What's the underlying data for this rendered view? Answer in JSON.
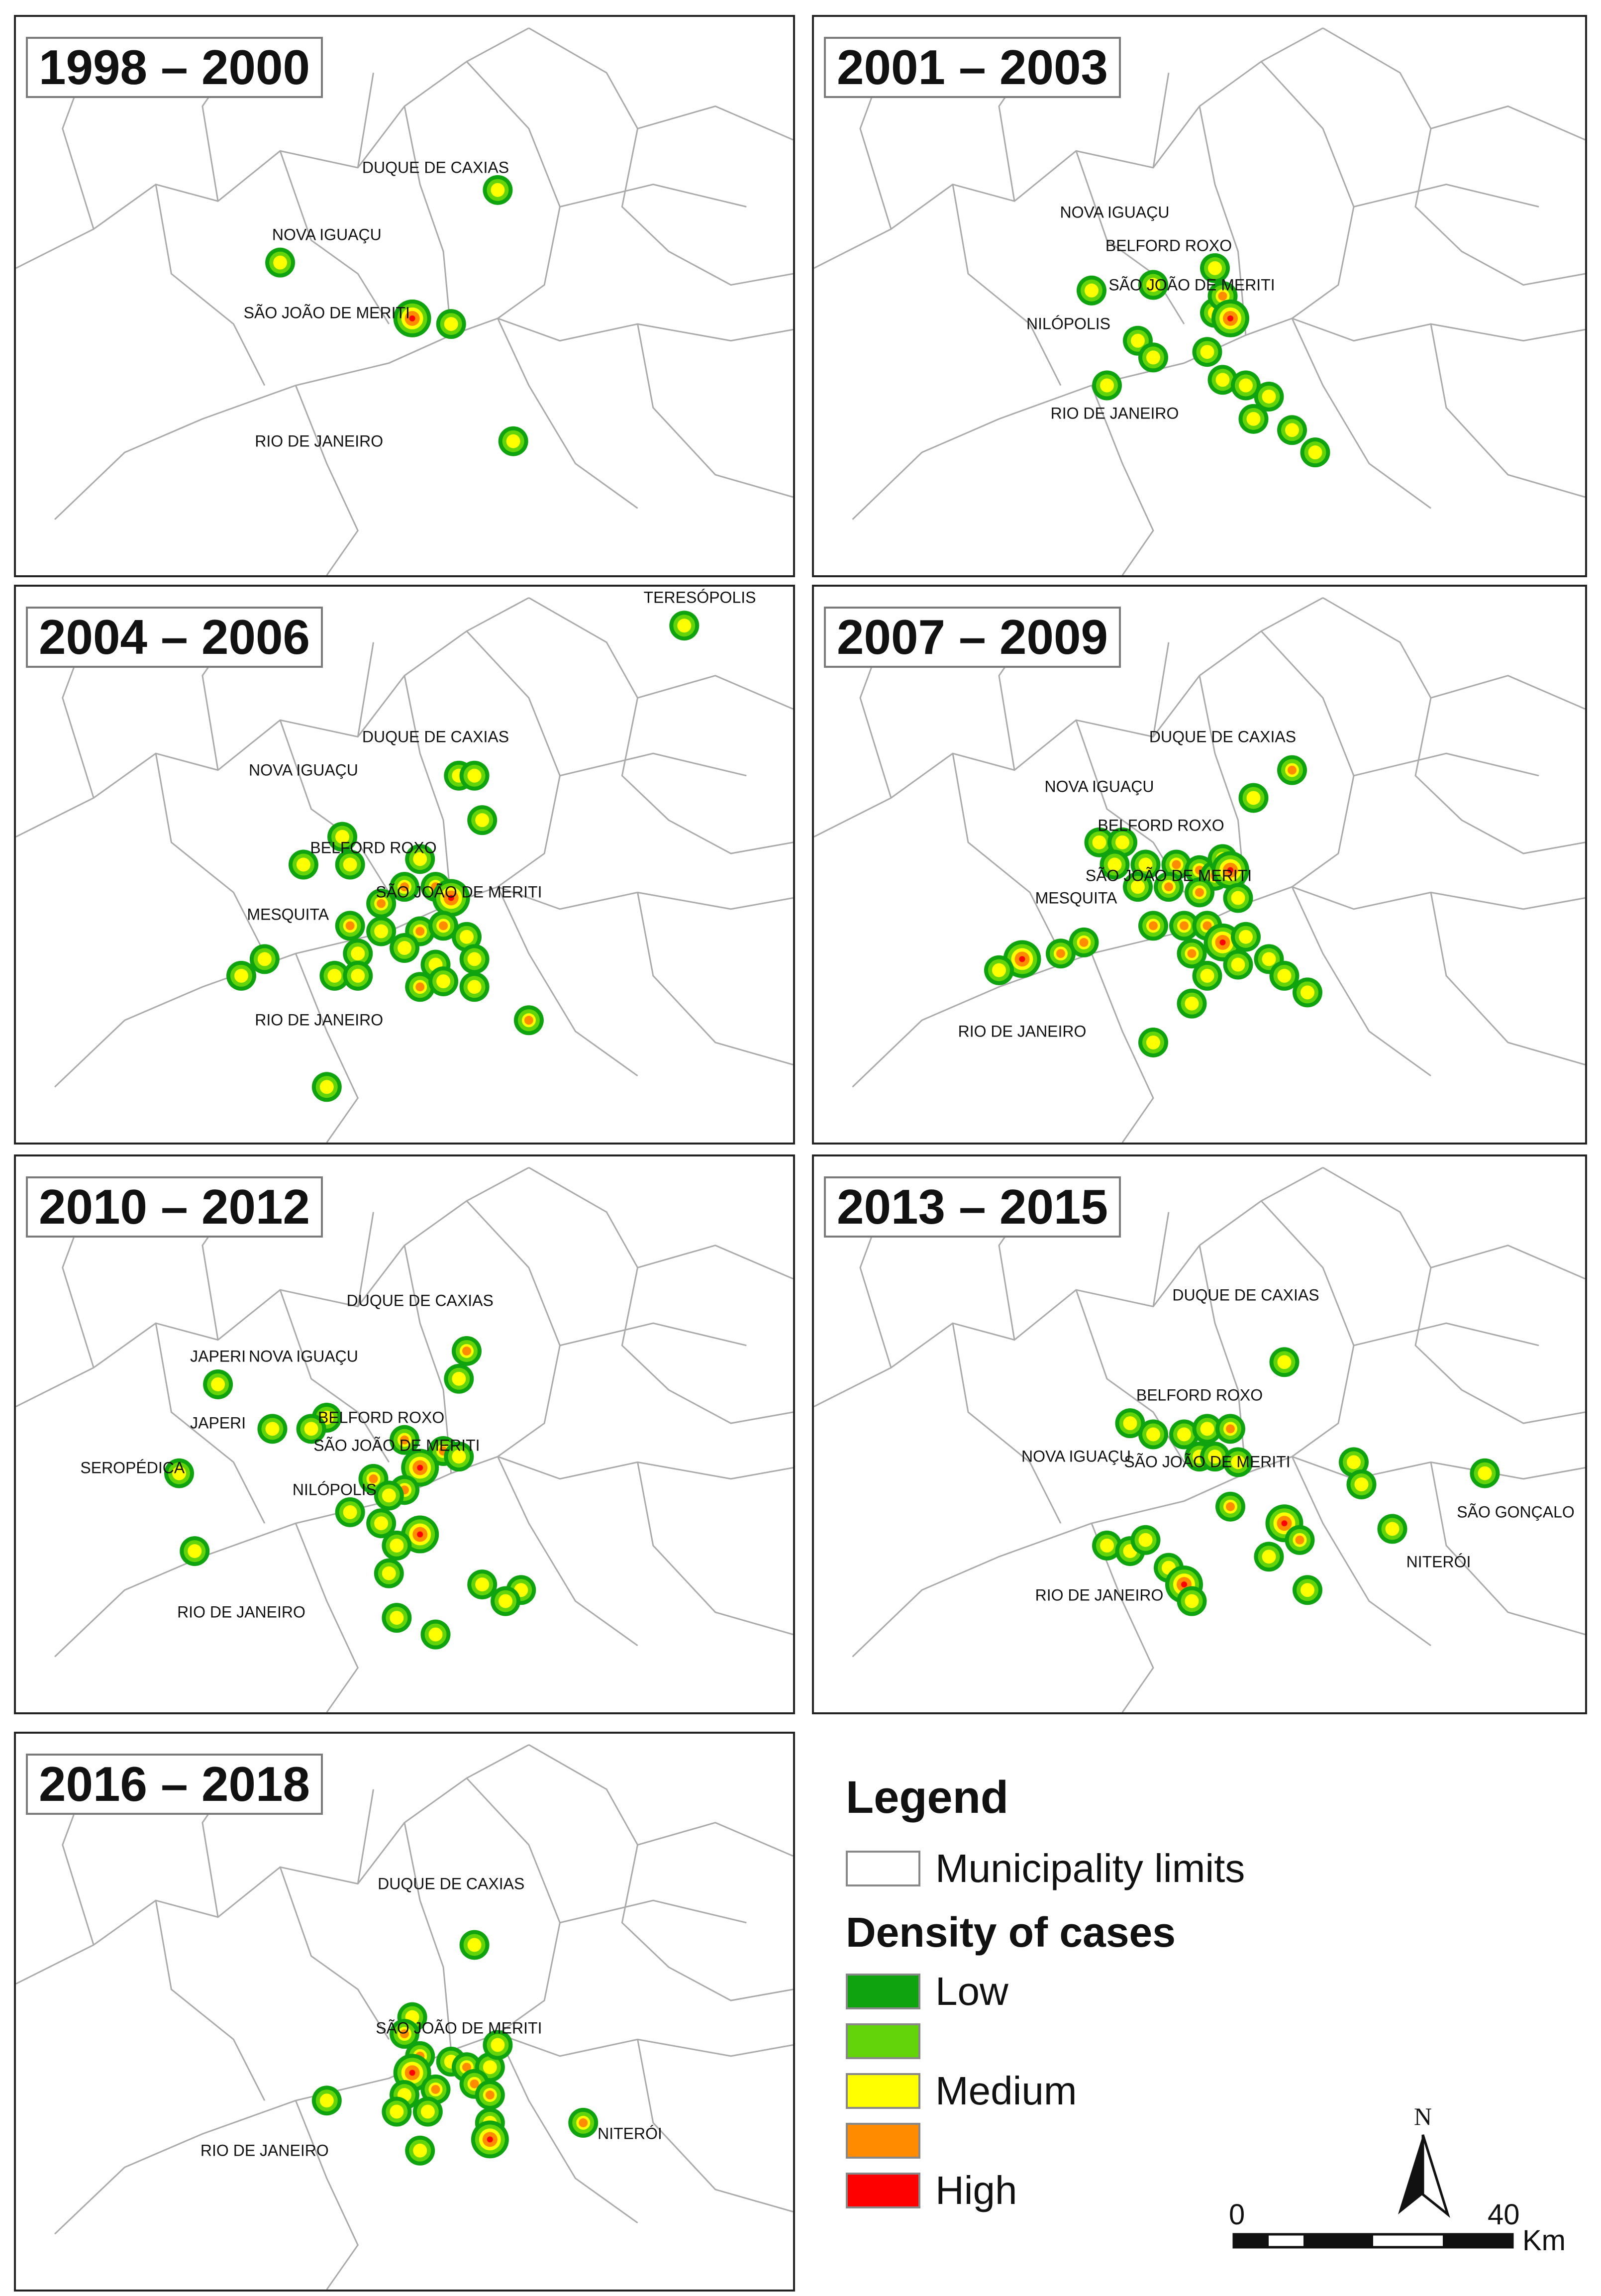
{
  "panels": [
    {
      "period": "1998 – 2000",
      "labels": [
        "DUQUE DE CAXIAS",
        "NOVA IGUAÇU",
        "SÃO JOÃO DE MERITI",
        "RIO DE JANEIRO"
      ],
      "hotspots": [
        [
          0.62,
          0.31,
          "low"
        ],
        [
          0.34,
          0.44,
          "low"
        ],
        [
          0.51,
          0.54,
          "high"
        ],
        [
          0.56,
          0.55,
          "low"
        ],
        [
          0.64,
          0.76,
          "low"
        ]
      ]
    },
    {
      "period": "2001 – 2003",
      "labels": [
        "NOVA IGUAÇU",
        "BELFORD ROXO",
        "SÃO JOÃO DE MERITI",
        "NILÓPOLIS",
        "RIO DE JANEIRO"
      ],
      "hotspots": [
        [
          0.36,
          0.49,
          "low"
        ],
        [
          0.44,
          0.48,
          "low"
        ],
        [
          0.52,
          0.53,
          "low"
        ],
        [
          0.42,
          0.58,
          "low"
        ],
        [
          0.44,
          0.61,
          "low"
        ],
        [
          0.38,
          0.66,
          "low"
        ],
        [
          0.52,
          0.45,
          "low"
        ],
        [
          0.53,
          0.5,
          "medium"
        ],
        [
          0.54,
          0.54,
          "high"
        ],
        [
          0.51,
          0.6,
          "low"
        ],
        [
          0.53,
          0.65,
          "low"
        ],
        [
          0.56,
          0.66,
          "low"
        ],
        [
          0.59,
          0.68,
          "low"
        ],
        [
          0.57,
          0.72,
          "low"
        ],
        [
          0.62,
          0.74,
          "low"
        ],
        [
          0.65,
          0.78,
          "low"
        ]
      ]
    },
    {
      "period": "2004 – 2006",
      "labels": [
        "TERESÓPOLIS",
        "DUQUE DE CAXIAS",
        "NOVA IGUAÇU",
        "BELFORD ROXO",
        "SÃO JOÃO DE MERITI",
        "MESQUITA",
        "RIO DE JANEIRO"
      ],
      "hotspots": [
        [
          0.86,
          0.07,
          "low"
        ],
        [
          0.57,
          0.34,
          "low"
        ],
        [
          0.59,
          0.34,
          "low"
        ],
        [
          0.6,
          0.42,
          "low"
        ],
        [
          0.42,
          0.45,
          "low"
        ],
        [
          0.37,
          0.5,
          "low"
        ],
        [
          0.43,
          0.5,
          "low"
        ],
        [
          0.52,
          0.49,
          "low"
        ],
        [
          0.5,
          0.54,
          "medium"
        ],
        [
          0.54,
          0.54,
          "medium"
        ],
        [
          0.56,
          0.56,
          "high"
        ],
        [
          0.47,
          0.57,
          "medium"
        ],
        [
          0.43,
          0.61,
          "medium"
        ],
        [
          0.47,
          0.62,
          "low"
        ],
        [
          0.52,
          0.62,
          "medium"
        ],
        [
          0.55,
          0.61,
          "medium"
        ],
        [
          0.58,
          0.63,
          "low"
        ],
        [
          0.44,
          0.66,
          "low"
        ],
        [
          0.5,
          0.65,
          "low"
        ],
        [
          0.54,
          0.68,
          "low"
        ],
        [
          0.59,
          0.67,
          "low"
        ],
        [
          0.32,
          0.67,
          "low"
        ],
        [
          0.29,
          0.7,
          "low"
        ],
        [
          0.41,
          0.7,
          "low"
        ],
        [
          0.44,
          0.7,
          "low"
        ],
        [
          0.52,
          0.72,
          "medium"
        ],
        [
          0.55,
          0.71,
          "low"
        ],
        [
          0.59,
          0.72,
          "low"
        ],
        [
          0.66,
          0.78,
          "medium"
        ],
        [
          0.4,
          0.9,
          "low"
        ]
      ]
    },
    {
      "period": "2007 – 2009",
      "labels": [
        "DUQUE DE CAXIAS",
        "NOVA IGUAÇU",
        "BELFORD ROXO",
        "SÃO JOÃO DE MERITI",
        "MESQUITA",
        "RIO DE JANEIRO"
      ],
      "hotspots": [
        [
          0.62,
          0.33,
          "medium"
        ],
        [
          0.57,
          0.38,
          "low"
        ],
        [
          0.37,
          0.46,
          "low"
        ],
        [
          0.4,
          0.46,
          "low"
        ],
        [
          0.39,
          0.5,
          "low"
        ],
        [
          0.43,
          0.5,
          "low"
        ],
        [
          0.47,
          0.5,
          "medium"
        ],
        [
          0.5,
          0.51,
          "medium"
        ],
        [
          0.52,
          0.52,
          "medium"
        ],
        [
          0.53,
          0.49,
          "medium"
        ],
        [
          0.54,
          0.51,
          "high"
        ],
        [
          0.42,
          0.54,
          "low"
        ],
        [
          0.46,
          0.54,
          "medium"
        ],
        [
          0.5,
          0.55,
          "medium"
        ],
        [
          0.55,
          0.56,
          "low"
        ],
        [
          0.44,
          0.61,
          "medium"
        ],
        [
          0.48,
          0.61,
          "medium"
        ],
        [
          0.51,
          0.61,
          "medium"
        ],
        [
          0.53,
          0.64,
          "high"
        ],
        [
          0.56,
          0.63,
          "low"
        ],
        [
          0.35,
          0.64,
          "medium"
        ],
        [
          0.32,
          0.66,
          "medium"
        ],
        [
          0.27,
          0.67,
          "high"
        ],
        [
          0.24,
          0.69,
          "low"
        ],
        [
          0.49,
          0.66,
          "medium"
        ],
        [
          0.51,
          0.7,
          "low"
        ],
        [
          0.55,
          0.68,
          "low"
        ],
        [
          0.59,
          0.67,
          "low"
        ],
        [
          0.61,
          0.7,
          "low"
        ],
        [
          0.64,
          0.73,
          "low"
        ],
        [
          0.49,
          0.75,
          "low"
        ],
        [
          0.44,
          0.82,
          "low"
        ]
      ]
    },
    {
      "period": "2010 – 2012",
      "labels": [
        "DUQUE DE CAXIAS",
        "JAPERI",
        "NOVA IGUAÇU",
        "JAPERI",
        "BELFORD ROXO",
        "SÃO JOÃO DE MERITI",
        "SEROPÉDICA",
        "NILÓPOLIS",
        "RIO DE JANEIRO"
      ],
      "hotspots": [
        [
          0.58,
          0.35,
          "medium"
        ],
        [
          0.57,
          0.4,
          "low"
        ],
        [
          0.26,
          0.41,
          "low"
        ],
        [
          0.33,
          0.49,
          "low"
        ],
        [
          0.4,
          0.47,
          "low"
        ],
        [
          0.38,
          0.49,
          "low"
        ],
        [
          0.5,
          0.51,
          "medium"
        ],
        [
          0.55,
          0.53,
          "medium"
        ],
        [
          0.57,
          0.54,
          "low"
        ],
        [
          0.52,
          0.56,
          "high"
        ],
        [
          0.46,
          0.58,
          "medium"
        ],
        [
          0.5,
          0.6,
          "medium"
        ],
        [
          0.48,
          0.61,
          "low"
        ],
        [
          0.43,
          0.64,
          "low"
        ],
        [
          0.47,
          0.66,
          "low"
        ],
        [
          0.52,
          0.68,
          "high"
        ],
        [
          0.49,
          0.7,
          "low"
        ],
        [
          0.21,
          0.57,
          "low"
        ],
        [
          0.23,
          0.71,
          "low"
        ],
        [
          0.48,
          0.75,
          "low"
        ],
        [
          0.6,
          0.77,
          "low"
        ],
        [
          0.65,
          0.78,
          "low"
        ],
        [
          0.63,
          0.8,
          "low"
        ],
        [
          0.49,
          0.83,
          "low"
        ],
        [
          0.54,
          0.86,
          "low"
        ]
      ]
    },
    {
      "period": "2013 – 2015",
      "labels": [
        "DUQUE DE CAXIAS",
        "BELFORD ROXO",
        "NOVA IGUAÇU",
        "SÃO JOÃO DE MERITI",
        "SÃO GONÇALO",
        "NITERÓI",
        "RIO DE JANEIRO"
      ],
      "hotspots": [
        [
          0.61,
          0.37,
          "low"
        ],
        [
          0.41,
          0.48,
          "low"
        ],
        [
          0.44,
          0.5,
          "low"
        ],
        [
          0.48,
          0.5,
          "low"
        ],
        [
          0.51,
          0.49,
          "low"
        ],
        [
          0.54,
          0.49,
          "medium"
        ],
        [
          0.5,
          0.54,
          "low"
        ],
        [
          0.52,
          0.54,
          "low"
        ],
        [
          0.55,
          0.55,
          "low"
        ],
        [
          0.7,
          0.55,
          "low"
        ],
        [
          0.71,
          0.59,
          "low"
        ],
        [
          0.87,
          0.57,
          "low"
        ],
        [
          0.54,
          0.63,
          "medium"
        ],
        [
          0.61,
          0.66,
          "high"
        ],
        [
          0.63,
          0.69,
          "medium"
        ],
        [
          0.59,
          0.72,
          "low"
        ],
        [
          0.75,
          0.67,
          "low"
        ],
        [
          0.38,
          0.7,
          "low"
        ],
        [
          0.41,
          0.71,
          "low"
        ],
        [
          0.43,
          0.69,
          "low"
        ],
        [
          0.46,
          0.74,
          "low"
        ],
        [
          0.48,
          0.77,
          "high"
        ],
        [
          0.49,
          0.8,
          "low"
        ],
        [
          0.64,
          0.78,
          "low"
        ]
      ]
    },
    {
      "period": "2016 – 2018",
      "labels": [
        "DUQUE DE CAXIAS",
        "SÃO JOÃO DE MERITI",
        "RIO DE JANEIRO",
        "NITERÓI"
      ],
      "hotspots": [
        [
          0.59,
          0.38,
          "low"
        ],
        [
          0.51,
          0.51,
          "low"
        ],
        [
          0.5,
          0.54,
          "medium"
        ],
        [
          0.52,
          0.58,
          "medium"
        ],
        [
          0.56,
          0.59,
          "low"
        ],
        [
          0.58,
          0.6,
          "medium"
        ],
        [
          0.61,
          0.6,
          "low"
        ],
        [
          0.62,
          0.56,
          "low"
        ],
        [
          0.51,
          0.61,
          "high"
        ],
        [
          0.5,
          0.65,
          "low"
        ],
        [
          0.54,
          0.64,
          "medium"
        ],
        [
          0.59,
          0.63,
          "medium"
        ],
        [
          0.61,
          0.65,
          "medium"
        ],
        [
          0.49,
          0.68,
          "low"
        ],
        [
          0.53,
          0.68,
          "low"
        ],
        [
          0.61,
          0.7,
          "low"
        ],
        [
          0.4,
          0.66,
          "low"
        ],
        [
          0.61,
          0.73,
          "high"
        ],
        [
          0.52,
          0.75,
          "low"
        ],
        [
          0.73,
          0.7,
          "medium"
        ]
      ]
    }
  ],
  "legend": {
    "title": "Legend",
    "municipality": "Municipality limits",
    "density_title": "Density of cases",
    "levels": [
      {
        "label": "Low",
        "color": "#0fa30f"
      },
      {
        "label": "",
        "color": "#63d40a"
      },
      {
        "label": "Medium",
        "color": "#ffff00"
      },
      {
        "label": "",
        "color": "#ff8c00"
      },
      {
        "label": "High",
        "color": "#ff0000"
      }
    ]
  },
  "north": {
    "label": "N"
  },
  "scale": {
    "start": "0",
    "end": "40",
    "unit": "Km"
  },
  "colors": {
    "low": "#0fa30f",
    "lowmed": "#63d40a",
    "medium": "#ffff00",
    "medhigh": "#ff8c00",
    "high": "#ff0000",
    "border": "#aaaaaa"
  }
}
